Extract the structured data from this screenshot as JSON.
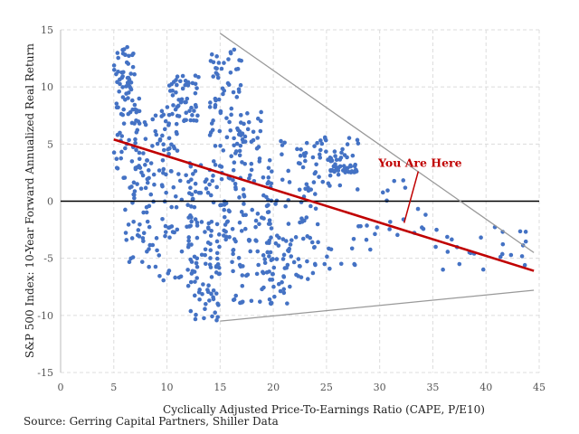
{
  "chart_data": {
    "type": "scatter",
    "xlabel": "Cyclically Adjusted Price-To-Earnings Ratio (CAPE, P/E10)",
    "ylabel": "S&P 500 Index:  10-Year Forward Annualized Real Return",
    "xlim": [
      0,
      45
    ],
    "ylim": [
      -15,
      15
    ],
    "xticks": [
      "0",
      "5",
      "10",
      "15",
      "20",
      "25",
      "30",
      "35",
      "40",
      "45"
    ],
    "yticks": [
      "15",
      "10",
      "5",
      "0",
      "-5",
      "-10",
      "-15"
    ],
    "grid": true,
    "point_color": "#4472c4",
    "trend_color": "#c00000",
    "envelope_color": "#999999",
    "trendline": {
      "x": [
        5,
        44.5
      ],
      "y": [
        5.4,
        -6.1
      ]
    },
    "upper_bound": {
      "x": [
        15,
        44.5
      ],
      "y": [
        14.7,
        -4.5
      ]
    },
    "lower_bound": {
      "x": [
        15,
        44.5
      ],
      "y": [
        -10.5,
        -7.8
      ]
    },
    "annotation": {
      "text": "You Are Here",
      "x": 33.8,
      "y": 3.0,
      "arrow_to": [
        32.3,
        -1.9
      ]
    },
    "clusters": [
      {
        "x": [
          5,
          7
        ],
        "y": [
          9,
          13.5
        ],
        "n": 45
      },
      {
        "x": [
          5,
          8
        ],
        "y": [
          2,
          9
        ],
        "n": 45
      },
      {
        "x": [
          6,
          9
        ],
        "y": [
          -6,
          2
        ],
        "n": 45
      },
      {
        "x": [
          7,
          11
        ],
        "y": [
          2,
          8
        ],
        "n": 55
      },
      {
        "x": [
          9,
          13
        ],
        "y": [
          -7,
          3
        ],
        "n": 55
      },
      {
        "x": [
          10,
          13
        ],
        "y": [
          7,
          11
        ],
        "n": 55
      },
      {
        "x": [
          12,
          15
        ],
        "y": [
          -10.5,
          -4
        ],
        "n": 55
      },
      {
        "x": [
          12,
          16
        ],
        "y": [
          -4,
          4
        ],
        "n": 55
      },
      {
        "x": [
          14,
          17
        ],
        "y": [
          8,
          13.5
        ],
        "n": 40
      },
      {
        "x": [
          14,
          19
        ],
        "y": [
          3,
          8
        ],
        "n": 60
      },
      {
        "x": [
          15,
          20
        ],
        "y": [
          -4,
          3
        ],
        "n": 65
      },
      {
        "x": [
          16,
          22
        ],
        "y": [
          -9,
          -3
        ],
        "n": 60
      },
      {
        "x": [
          19,
          24
        ],
        "y": [
          -7,
          -3
        ],
        "n": 40
      },
      {
        "x": [
          19,
          24
        ],
        "y": [
          -2,
          6
        ],
        "n": 45
      },
      {
        "x": [
          23,
          28
        ],
        "y": [
          1,
          6
        ],
        "n": 45
      },
      {
        "x": [
          25,
          28
        ],
        "y": [
          2.5,
          4
        ],
        "n": 30
      },
      {
        "x": [
          23,
          30
        ],
        "y": [
          -6,
          -2
        ],
        "n": 20
      },
      {
        "x": [
          30,
          35
        ],
        "y": [
          -3,
          2
        ],
        "n": 15
      },
      {
        "x": [
          35,
          44
        ],
        "y": [
          -6,
          -2
        ],
        "n": 25
      }
    ]
  },
  "source_text": "Source: Gerring Capital Partners, Shiller Data"
}
